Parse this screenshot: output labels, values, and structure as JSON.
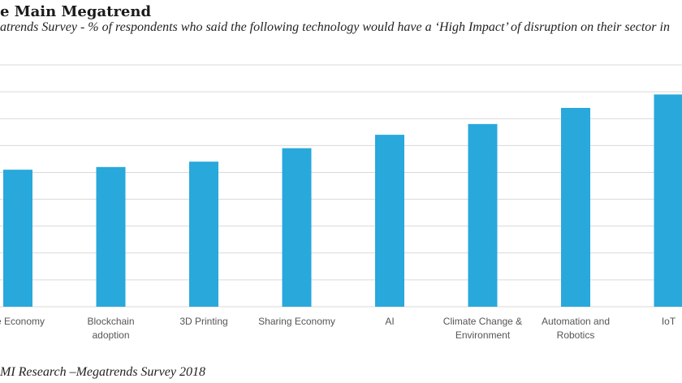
{
  "chart_data": {
    "type": "bar",
    "title": "e Main Megatrend",
    "subtitle": "atrends Survey - % of respondents who said the following technology would have a ‘High Impact’ of disruption on their sector in",
    "source": "MI Research –Megatrends Survey 2018",
    "categories": [
      [
        "ce Economy"
      ],
      [
        "Blockchain",
        "adoption"
      ],
      [
        "3D Printing"
      ],
      [
        "Sharing Economy"
      ],
      [
        "AI"
      ],
      [
        "Climate Change &",
        "Environment"
      ],
      [
        "Automation and",
        "Robotics"
      ],
      [
        "IoT"
      ]
    ],
    "values": [
      51,
      52,
      54,
      59,
      64,
      68,
      74,
      79
    ],
    "ylim": [
      0,
      90
    ],
    "grid": true,
    "bar_color": "#29A8DC",
    "gridline_color": "#D9D9D9"
  }
}
